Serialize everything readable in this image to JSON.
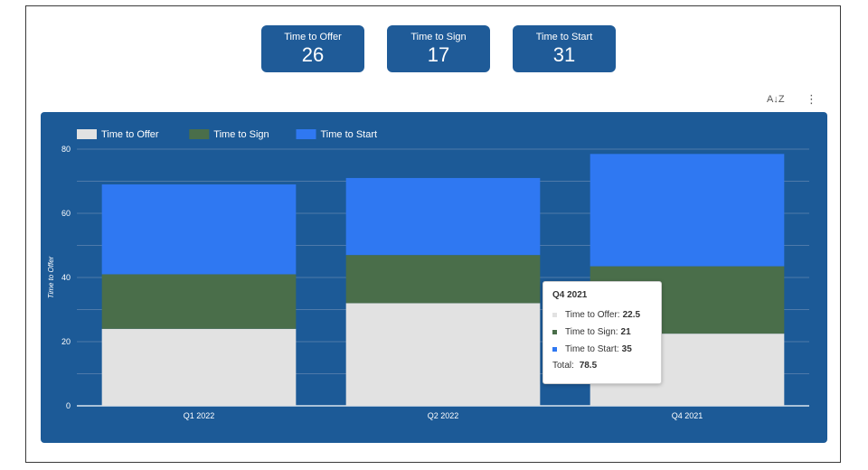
{
  "scorecards": [
    {
      "label": "Time to Offer",
      "value": "26"
    },
    {
      "label": "Time to Sign",
      "value": "17"
    },
    {
      "label": "Time to Start",
      "value": "31"
    }
  ],
  "toolbar": {
    "sort_icon_glyph": "A↓Z",
    "more_icon_glyph": "⋮"
  },
  "colors": {
    "card_background": "#1f5b98",
    "chart_background": "#1c5a97",
    "time_to_offer": "#e2e2e2",
    "time_to_sign": "#4a6e4a",
    "time_to_start": "#2f78f2"
  },
  "chart_data": {
    "type": "bar",
    "stacked": true,
    "categories": [
      "Q1 2022",
      "Q2 2022",
      "Q4 2021"
    ],
    "series": [
      {
        "name": "Time to Offer",
        "values": [
          24,
          32,
          22.5
        ]
      },
      {
        "name": "Time to Sign",
        "values": [
          17,
          15,
          21
        ]
      },
      {
        "name": "Time to Start",
        "values": [
          28,
          24,
          35
        ]
      }
    ],
    "ylabel": "Time to Offer",
    "xlabel": "",
    "ylim": [
      0,
      80
    ],
    "yticks": [
      0,
      20,
      40,
      60,
      80
    ],
    "grid": true,
    "legend_position": "top-left"
  },
  "tooltip": {
    "title": "Q4 2021",
    "rows": [
      {
        "label": "Time to Offer:",
        "value": "22.5"
      },
      {
        "label": "Time to Sign:",
        "value": "21"
      },
      {
        "label": "Time to Start:",
        "value": "35"
      }
    ],
    "total_label": "Total:",
    "total_value": "78.5"
  }
}
